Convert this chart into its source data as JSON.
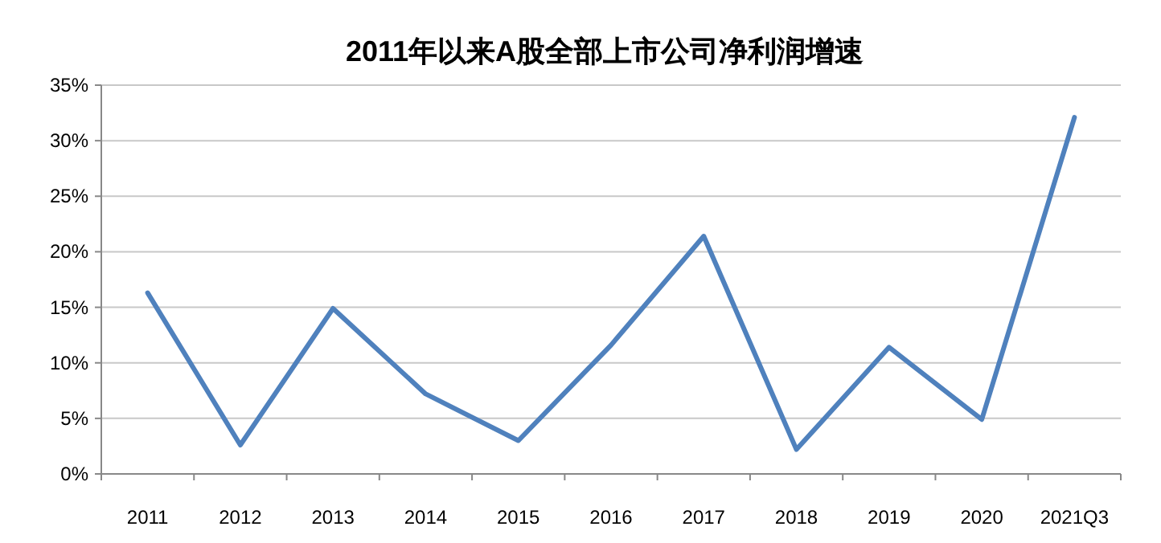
{
  "chart_data": {
    "type": "line",
    "title": "2011年以来A股全部上市公司净利润增速",
    "categories": [
      "2011",
      "2012",
      "2013",
      "2014",
      "2015",
      "2016",
      "2017",
      "2018",
      "2019",
      "2020",
      "2021Q3"
    ],
    "series": [
      {
        "color": "#4f81bd",
        "values": [
          16.3,
          2.6,
          14.9,
          7.2,
          3.0,
          11.6,
          21.4,
          2.2,
          11.4,
          4.9,
          32.1
        ]
      }
    ],
    "ylim": [
      0,
      35
    ],
    "yticks": [
      {
        "value": 0,
        "label": "0%"
      },
      {
        "value": 5,
        "label": "5%"
      },
      {
        "value": 10,
        "label": "10%"
      },
      {
        "value": 15,
        "label": "15%"
      },
      {
        "value": 20,
        "label": "20%"
      },
      {
        "value": 25,
        "label": "25%"
      },
      {
        "value": 30,
        "label": "30%"
      },
      {
        "value": 35,
        "label": "35%"
      }
    ],
    "grid": "y",
    "marker": "none",
    "line_style": "solid"
  }
}
